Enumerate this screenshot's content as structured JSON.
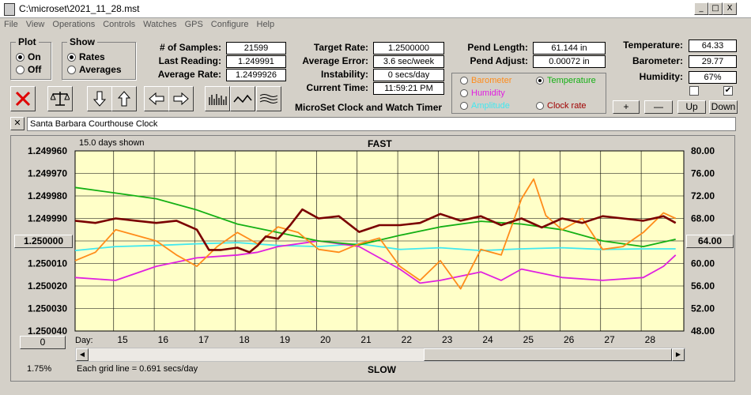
{
  "window": {
    "title": "C:\\microset\\2021_11_28.mst",
    "min": "_",
    "max": "□",
    "close": "X"
  },
  "menu": [
    "File",
    "View",
    "Operations",
    "Controls",
    "Watches",
    "GPS",
    "Configure",
    "Help"
  ],
  "plot": {
    "title": "Plot",
    "on": "On",
    "off": "Off",
    "selected": "On"
  },
  "show": {
    "title": "Show",
    "rates": "Rates",
    "averages": "Averages",
    "selected": "Rates"
  },
  "stats": {
    "samples_label": "# of Samples:",
    "samples": "21599",
    "last_label": "Last Reading:",
    "last": "1.249991",
    "avg_label": "Average Rate:",
    "avg": "1.2499926",
    "target_label": "Target Rate:",
    "target": "1.2500000",
    "err_label": "Average Error:",
    "err": "3.6 sec/week",
    "instab_label": "Instability:",
    "instab": "0 secs/day",
    "time_label": "Current Time:",
    "time": "11:59:21 PM",
    "pend_label": "Pend Length:",
    "pend": "61.144 in",
    "adjust_label": "Pend Adjust:",
    "adjust": "0.00072 in",
    "temp_label": "Temperature:",
    "temp": "64.33",
    "baro_label": "Barometer:",
    "baro": "29.77",
    "hum_label": "Humidity:",
    "hum": "67%"
  },
  "app_title": "MicroSet Clock and Watch Timer",
  "aux_legend": {
    "barometer": "Barometer",
    "temperature": "Temperature",
    "humidity": "Humidity",
    "amplitude": "Amplitude",
    "clockrate": "Clock rate",
    "selected": "Temperature"
  },
  "adjust_buttons": {
    "plus": "+",
    "minus": "—",
    "up": "Up",
    "down": "Down"
  },
  "clock_name": "Santa Barbara Courthouse Clock",
  "graph": {
    "days_shown": "15.0 days shown",
    "fast": "FAST",
    "slow": "SLOW",
    "center_button": "1.250000",
    "right_button": "64.00",
    "bottom_button": "0",
    "percent": "1.75%",
    "grid_note": "Each grid line = 0.691 secs/day",
    "day_label": "Day:"
  },
  "colors": {
    "rate": "#7a0000",
    "temperature": "#14b014",
    "barometer": "#ff8c1a",
    "humidity": "#e020e0",
    "amplitude": "#40e8f0",
    "plot_bg": "#ffffc8"
  },
  "chart_data": {
    "type": "line",
    "x_label": "Day",
    "x_ticks": [
      "15",
      "16",
      "17",
      "18",
      "19",
      "20",
      "21",
      "22",
      "23",
      "24",
      "25",
      "26",
      "27",
      "28"
    ],
    "xlim": [
      14.0,
      29.0
    ],
    "y_left_ticks": [
      "1.249960",
      "1.249970",
      "1.249980",
      "1.249990",
      "1.250000",
      "1.250010",
      "1.250020",
      "1.250030",
      "1.250040"
    ],
    "y_left_range": [
      1.24996,
      1.25004
    ],
    "y_left_inverted": true,
    "y_right_ticks": [
      "80.00",
      "76.00",
      "72.00",
      "68.00",
      "64.00",
      "60.00",
      "56.00",
      "52.00",
      "48.00"
    ],
    "y_right_range": [
      48,
      80
    ],
    "grid": true,
    "series": [
      {
        "name": "Clock rate",
        "axis": "left",
        "x": [
          14.0,
          14.5,
          15.0,
          15.5,
          16.0,
          16.5,
          17.0,
          17.3,
          17.6,
          18.0,
          18.3,
          18.5,
          18.7,
          19.0,
          19.3,
          19.6,
          20.0,
          20.5,
          21.0,
          21.5,
          22.0,
          22.5,
          23.0,
          23.5,
          24.0,
          24.5,
          25.0,
          25.5,
          26.0,
          26.5,
          27.0,
          27.5,
          28.0,
          28.5,
          28.8
        ],
        "values": [
          1.249991,
          1.249992,
          1.24999,
          1.249991,
          1.249992,
          1.249991,
          1.249995,
          1.250004,
          1.250004,
          1.250003,
          1.250005,
          1.250002,
          1.249998,
          1.249999,
          1.249993,
          1.249986,
          1.24999,
          1.249989,
          1.249996,
          1.249993,
          1.249993,
          1.249992,
          1.249988,
          1.249991,
          1.249989,
          1.249993,
          1.24999,
          1.249994,
          1.24999,
          1.249992,
          1.249989,
          1.24999,
          1.249991,
          1.249989,
          1.249992
        ]
      },
      {
        "name": "Temperature",
        "axis": "right",
        "x": [
          14.0,
          15.0,
          16.0,
          17.0,
          18.0,
          19.0,
          20.0,
          21.0,
          22.0,
          23.0,
          24.0,
          25.0,
          26.0,
          27.0,
          28.0,
          28.8
        ],
        "values": [
          73.5,
          72.5,
          71.5,
          69.5,
          67.0,
          65.5,
          64.0,
          63.3,
          65.0,
          66.5,
          67.5,
          67.0,
          66.0,
          64.0,
          63.0,
          64.3
        ]
      },
      {
        "name": "Barometer",
        "axis": "right",
        "x": [
          14.0,
          14.5,
          15.0,
          15.5,
          16.0,
          16.5,
          17.0,
          17.5,
          18.0,
          18.5,
          19.0,
          19.5,
          20.0,
          20.5,
          21.0,
          21.5,
          22.0,
          22.5,
          23.0,
          23.5,
          24.0,
          24.5,
          25.0,
          25.3,
          25.6,
          26.0,
          26.5,
          27.0,
          27.5,
          28.0,
          28.5,
          28.8
        ],
        "values": [
          60.5,
          62.0,
          66.0,
          65.0,
          64.0,
          61.5,
          59.5,
          63.0,
          65.5,
          63.5,
          66.5,
          65.5,
          62.5,
          62.0,
          63.5,
          64.5,
          59.5,
          57.0,
          60.5,
          55.5,
          62.5,
          61.5,
          71.5,
          75.0,
          68.5,
          66.0,
          68.0,
          62.5,
          63.0,
          65.5,
          69.0,
          68.0
        ]
      },
      {
        "name": "Humidity",
        "axis": "right",
        "x": [
          14.0,
          15.0,
          16.0,
          17.0,
          18.0,
          18.5,
          19.0,
          20.0,
          21.0,
          22.0,
          22.5,
          23.0,
          24.0,
          24.5,
          25.0,
          26.0,
          27.0,
          28.0,
          28.5,
          28.8
        ],
        "values": [
          57.5,
          57.0,
          59.5,
          61.0,
          61.5,
          62.0,
          63.0,
          64.0,
          63.0,
          59.0,
          56.5,
          57.0,
          58.5,
          57.0,
          59.0,
          57.5,
          57.0,
          57.5,
          59.5,
          61.5
        ]
      },
      {
        "name": "Amplitude",
        "axis": "right",
        "x": [
          14.0,
          15.0,
          16.0,
          17.0,
          18.0,
          19.0,
          20.0,
          21.0,
          22.0,
          23.0,
          24.0,
          25.0,
          26.0,
          27.0,
          28.0,
          28.8
        ],
        "values": [
          62.3,
          63.0,
          63.2,
          63.5,
          63.7,
          63.2,
          63.0,
          63.5,
          62.5,
          62.8,
          62.3,
          62.6,
          62.8,
          62.5,
          62.6,
          62.6
        ]
      }
    ]
  }
}
